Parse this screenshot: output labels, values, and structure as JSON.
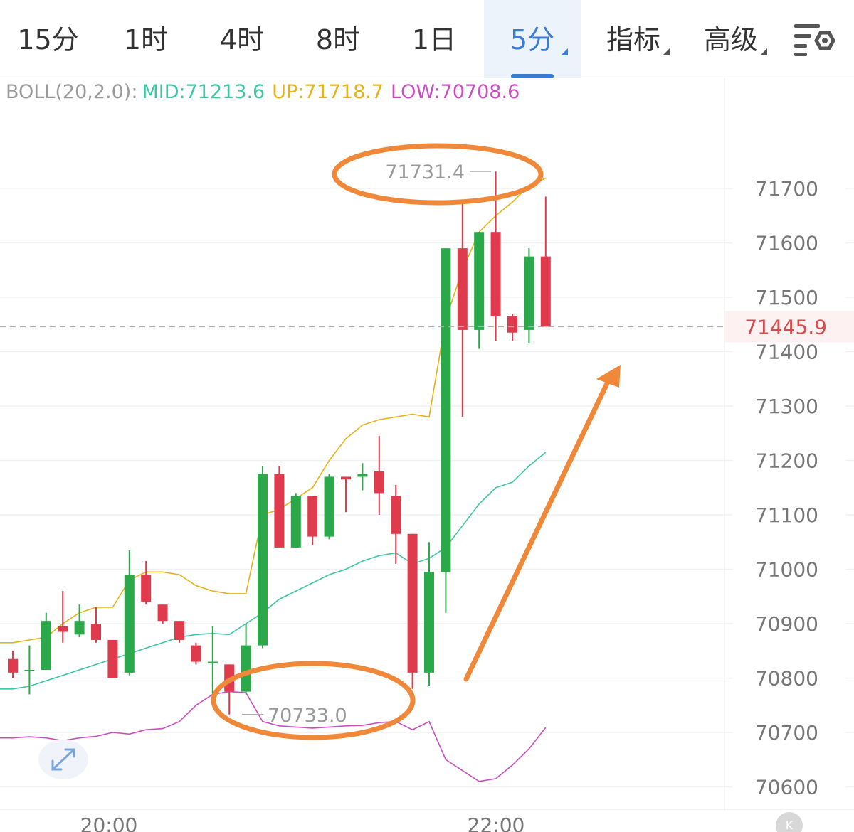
{
  "tabs": [
    {
      "label": "15分"
    },
    {
      "label": "1时"
    },
    {
      "label": "4时"
    },
    {
      "label": "8时"
    },
    {
      "label": "1日"
    },
    {
      "label": "5分",
      "active": true
    },
    {
      "label": "指标"
    },
    {
      "label": "高级"
    }
  ],
  "icons": {
    "settings": "chart-settings-icon",
    "expand": "expand-arrows-icon",
    "logo": "k-logo-icon"
  },
  "logo_text": "K",
  "indicator": {
    "name": "BOLL(20,2.0):",
    "mid": "MID:71213.6",
    "up": "UP:71718.7",
    "low": "LOW:70708.6"
  },
  "colors": {
    "up_candle": "#2aa84a",
    "down_candle": "#e03b4c",
    "mid_line": "#3cc6a3",
    "up_line": "#e5b21a",
    "low_line": "#c94fc0",
    "annotation": "#f0883a",
    "active_tab": "#3a7bd5",
    "price_label": "#d24a4a"
  },
  "current_price": "71445.9",
  "high_label": "71731.4",
  "low_label": "70733.0",
  "chart_data": {
    "type": "candlestick",
    "interval": "5分",
    "ylim": [
      70560,
      71830
    ],
    "yticks": [
      71700,
      71600,
      71500,
      71400,
      71300,
      71200,
      71100,
      71000,
      70900,
      70800,
      70700,
      70600
    ],
    "xticks": [
      "20:00",
      "22:00"
    ],
    "current_price": 71445.9,
    "high_marker": 71731.4,
    "low_marker": 70733.0,
    "candles": [
      {
        "o": 70835,
        "h": 70850,
        "c": 70810,
        "l": 70800
      },
      {
        "o": 70815,
        "h": 70860,
        "c": 70815,
        "l": 70770
      },
      {
        "o": 70815,
        "h": 70920,
        "c": 70905,
        "l": 70815
      },
      {
        "o": 70895,
        "h": 70960,
        "c": 70885,
        "l": 70865
      },
      {
        "o": 70880,
        "h": 70935,
        "c": 70905,
        "l": 70875
      },
      {
        "o": 70900,
        "h": 70930,
        "c": 70870,
        "l": 70865
      },
      {
        "o": 70870,
        "h": 70870,
        "c": 70800,
        "l": 70800
      },
      {
        "o": 70810,
        "h": 71035,
        "c": 70990,
        "l": 70805
      },
      {
        "o": 70990,
        "h": 71015,
        "c": 70940,
        "l": 70935
      },
      {
        "o": 70935,
        "h": 70935,
        "c": 70905,
        "l": 70900
      },
      {
        "o": 70905,
        "h": 70905,
        "c": 70870,
        "l": 70865
      },
      {
        "o": 70860,
        "h": 70865,
        "c": 70830,
        "l": 70825
      },
      {
        "o": 70830,
        "h": 70895,
        "c": 70830,
        "l": 70765
      },
      {
        "o": 70825,
        "h": 70825,
        "c": 70775,
        "l": 70733
      },
      {
        "o": 70775,
        "h": 70900,
        "c": 70860,
        "l": 70770
      },
      {
        "o": 70860,
        "h": 71190,
        "c": 71175,
        "l": 70855
      },
      {
        "o": 71175,
        "h": 71190,
        "c": 71040,
        "l": 71040
      },
      {
        "o": 71040,
        "h": 71140,
        "c": 71135,
        "l": 71040
      },
      {
        "o": 71135,
        "h": 71135,
        "c": 71060,
        "l": 71045
      },
      {
        "o": 71060,
        "h": 71175,
        "c": 71170,
        "l": 71055
      },
      {
        "o": 71170,
        "h": 71170,
        "c": 71165,
        "l": 71105
      },
      {
        "o": 71170,
        "h": 71195,
        "c": 71175,
        "l": 71145
      },
      {
        "o": 71180,
        "h": 71245,
        "c": 71140,
        "l": 71100
      },
      {
        "o": 71135,
        "h": 71155,
        "c": 71065,
        "l": 71010
      },
      {
        "o": 71065,
        "h": 71065,
        "c": 70810,
        "l": 70780
      },
      {
        "o": 70810,
        "h": 71050,
        "c": 70995,
        "l": 70785
      },
      {
        "o": 70995,
        "h": 71590,
        "c": 71590,
        "l": 70920
      },
      {
        "o": 71590,
        "h": 71675,
        "c": 71440,
        "l": 71280
      },
      {
        "o": 71440,
        "h": 71620,
        "c": 71620,
        "l": 71405
      },
      {
        "o": 71620,
        "h": 71731,
        "c": 71465,
        "l": 71420
      },
      {
        "o": 71465,
        "h": 71470,
        "c": 71435,
        "l": 71420
      },
      {
        "o": 71440,
        "h": 71590,
        "c": 71575,
        "l": 71415
      },
      {
        "o": 71575,
        "h": 71685,
        "c": 71446,
        "l": 71446
      }
    ],
    "series": [
      {
        "name": "MID",
        "values": [
          70780,
          70785,
          70795,
          70805,
          70815,
          70825,
          70835,
          70845,
          70855,
          70865,
          70875,
          70880,
          70882,
          70880,
          70900,
          70920,
          70945,
          70960,
          70975,
          70990,
          71000,
          71015,
          71025,
          71030,
          71010,
          71020,
          71040,
          71080,
          71120,
          71150,
          71160,
          71190,
          71215
        ]
      },
      {
        "name": "UP",
        "values": [
          70865,
          70870,
          70875,
          70900,
          70920,
          70930,
          70930,
          70980,
          70995,
          70995,
          70990,
          70970,
          70960,
          70955,
          70955,
          71100,
          71110,
          71130,
          71150,
          71200,
          71240,
          71265,
          71275,
          71280,
          71285,
          71280,
          71460,
          71550,
          71620,
          71650,
          71675,
          71705,
          71719
        ]
      },
      {
        "name": "LOW",
        "values": [
          70690,
          70692,
          70690,
          70685,
          70690,
          70693,
          70700,
          70697,
          70705,
          70707,
          70720,
          70750,
          70770,
          70775,
          70773,
          70720,
          70712,
          70710,
          70708,
          70710,
          70712,
          70713,
          70718,
          70720,
          70705,
          70720,
          70650,
          70630,
          70610,
          70615,
          70640,
          70670,
          70709
        ]
      }
    ]
  }
}
